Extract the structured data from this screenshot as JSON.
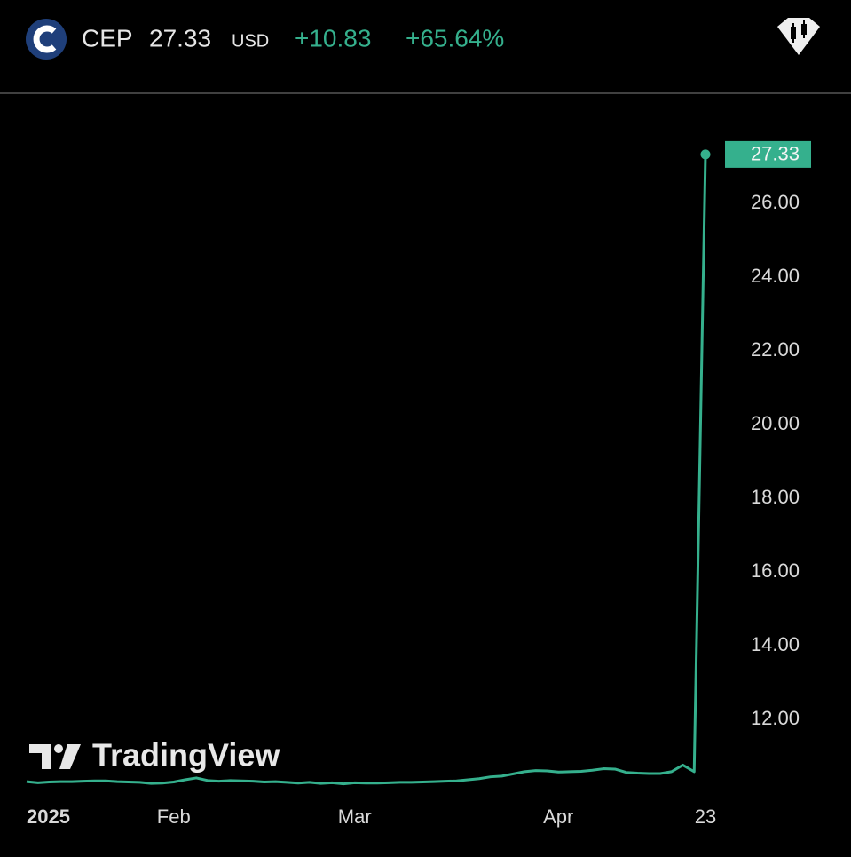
{
  "chart_data": {
    "type": "line",
    "header": {
      "symbol": "CEP",
      "price": "27.33",
      "currency": "USD",
      "change": "+10.83",
      "change_percent": "+65.64%"
    },
    "watermark": "TradingView",
    "categories": [
      "2025",
      null,
      null,
      null,
      null,
      null,
      null,
      null,
      null,
      null,
      null,
      null,
      null,
      "Feb",
      null,
      null,
      null,
      null,
      null,
      null,
      null,
      null,
      null,
      null,
      null,
      null,
      null,
      null,
      null,
      "Mar",
      null,
      null,
      null,
      null,
      null,
      null,
      null,
      null,
      null,
      null,
      null,
      null,
      null,
      null,
      null,
      null,
      null,
      "Apr",
      null,
      null,
      null,
      null,
      null,
      null,
      null,
      null,
      null,
      null,
      null,
      null,
      "23"
    ],
    "series": [
      {
        "name": "CEP",
        "color": "#35b08d",
        "values": [
          10.31,
          10.28,
          10.3,
          10.31,
          10.31,
          10.32,
          10.33,
          10.33,
          10.31,
          10.3,
          10.29,
          10.26,
          10.27,
          10.3,
          10.36,
          10.41,
          10.34,
          10.32,
          10.34,
          10.33,
          10.32,
          10.3,
          10.31,
          10.29,
          10.27,
          10.29,
          10.26,
          10.28,
          10.25,
          10.28,
          10.27,
          10.27,
          10.28,
          10.29,
          10.29,
          10.3,
          10.31,
          10.32,
          10.33,
          10.36,
          10.39,
          10.44,
          10.46,
          10.52,
          10.58,
          10.61,
          10.6,
          10.57,
          10.58,
          10.59,
          10.62,
          10.66,
          10.65,
          10.56,
          10.54,
          10.53,
          10.53,
          10.58,
          10.76,
          10.58,
          27.33
        ]
      }
    ],
    "ylim": [
      9.83,
      28.87
    ],
    "yticks": [
      {
        "value": 12,
        "label": "12.00"
      },
      {
        "value": 14,
        "label": "14.00"
      },
      {
        "value": 16,
        "label": "16.00"
      },
      {
        "value": 18,
        "label": "18.00"
      },
      {
        "value": 20,
        "label": "20.00"
      },
      {
        "value": 22,
        "label": "22.00"
      },
      {
        "value": 24,
        "label": "24.00"
      },
      {
        "value": 26,
        "label": "26.00"
      }
    ],
    "grid": false
  }
}
